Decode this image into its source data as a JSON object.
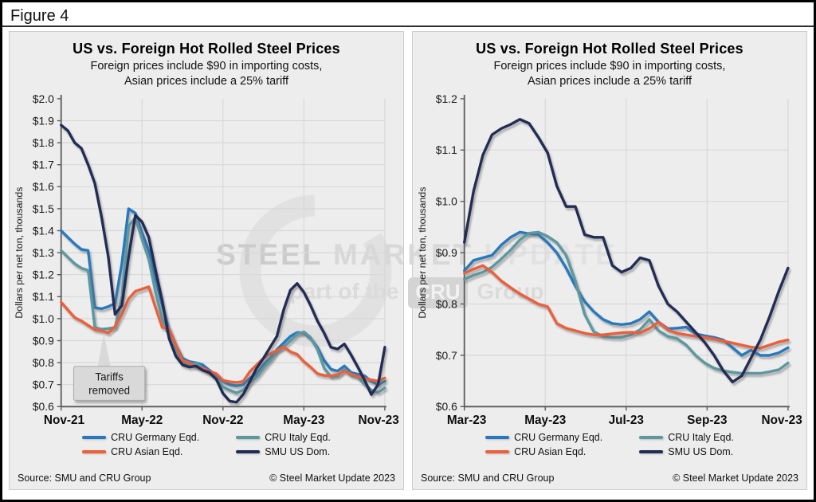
{
  "figure_label": "Figure 4",
  "source": "Source: SMU and CRU Group",
  "copyright": "© Steel Market Update 2023",
  "watermark": {
    "word1": "STEEL",
    "word2": "MARKET",
    "word3": "UPDATE",
    "line2_pre": "part of the",
    "line2_logo": "CRU",
    "line2_post": "Group"
  },
  "colors": {
    "germany": "#2878bd",
    "italy": "#5b98a0",
    "asian": "#ec5f3a",
    "us": "#222c54",
    "grid": "#d8d8d8",
    "axis": "#595959",
    "panel_bg": "#ededed",
    "callout_bg": "#d9d9d9"
  },
  "legend": {
    "items": [
      {
        "label": "CRU Germany Eqd.",
        "color": "#2878bd"
      },
      {
        "label": "CRU Italy Eqd.",
        "color": "#5b98a0"
      },
      {
        "label": "CRU Asian Eqd.",
        "color": "#ec5f3a"
      },
      {
        "label": "SMU US Dom.",
        "color": "#222c54"
      }
    ]
  },
  "chart_data": [
    {
      "type": "line",
      "title": "US vs. Foreign Hot Rolled Steel Prices",
      "subtitle": [
        "Foreign prices include $90 in importing costs,",
        "Asian prices include a 25% tariff"
      ],
      "ylabel": "Dollars per net ton, thousands",
      "ylim": [
        0.6,
        2.0
      ],
      "yticks": [
        "$2.0",
        "$1.9",
        "$1.8",
        "$1.7",
        "$1.6",
        "$1.5",
        "$1.4",
        "$1.3",
        "$1.2",
        "$1.1",
        "$1.0",
        "$0.9",
        "$0.8",
        "$0.7",
        "$0.6"
      ],
      "xticks": [
        "Nov-21",
        "May-22",
        "Nov-22",
        "May-23",
        "Nov-23"
      ],
      "x_start": "Nov-21",
      "x_end": "Nov-23",
      "x_step": "half-month",
      "grid": true,
      "legend_position": "bottom",
      "annotation": {
        "line1": "Tariffs",
        "line2": "removed",
        "points_to": {
          "series": "CRU Asian Eqd.",
          "x": "Jan-22",
          "value": 0.95
        }
      },
      "series": [
        {
          "name": "CRU Germany Eqd.",
          "color": "#2878bd",
          "values": [
            1.4,
            1.37,
            1.34,
            1.315,
            1.31,
            1.05,
            1.045,
            1.055,
            1.07,
            1.25,
            1.5,
            1.48,
            1.39,
            1.31,
            1.18,
            1.06,
            0.95,
            0.88,
            0.82,
            0.805,
            0.8,
            0.79,
            0.765,
            0.745,
            0.715,
            0.7,
            0.695,
            0.7,
            0.73,
            0.75,
            0.79,
            0.82,
            0.86,
            0.89,
            0.92,
            0.937,
            0.935,
            0.91,
            0.87,
            0.81,
            0.77,
            0.762,
            0.785,
            0.755,
            0.748,
            0.74,
            0.715,
            0.7,
            0.715
          ]
        },
        {
          "name": "CRU Italy Eqd.",
          "color": "#5b98a0",
          "values": [
            1.31,
            1.28,
            1.25,
            1.23,
            1.22,
            0.96,
            0.952,
            0.955,
            0.96,
            1.1,
            1.42,
            1.46,
            1.36,
            1.27,
            1.12,
            1.0,
            0.92,
            0.855,
            0.8,
            0.79,
            0.8,
            0.775,
            0.75,
            0.73,
            0.69,
            0.675,
            0.663,
            0.675,
            0.71,
            0.735,
            0.775,
            0.81,
            0.852,
            0.872,
            0.9,
            0.93,
            0.94,
            0.915,
            0.86,
            0.775,
            0.737,
            0.74,
            0.77,
            0.743,
            0.735,
            0.7,
            0.675,
            0.665,
            0.685
          ]
        },
        {
          "name": "CRU Asian Eqd.",
          "color": "#ec5f3a",
          "values": [
            1.075,
            1.04,
            1.005,
            0.99,
            0.97,
            0.95,
            0.945,
            0.935,
            0.965,
            1.02,
            1.09,
            1.125,
            1.135,
            1.145,
            1.05,
            0.96,
            0.955,
            0.88,
            0.81,
            0.8,
            0.78,
            0.775,
            0.76,
            0.75,
            0.72,
            0.713,
            0.71,
            0.715,
            0.76,
            0.79,
            0.82,
            0.84,
            0.856,
            0.872,
            0.85,
            0.838,
            0.805,
            0.78,
            0.75,
            0.742,
            0.74,
            0.746,
            0.762,
            0.748,
            0.737,
            0.728,
            0.722,
            0.716,
            0.73
          ]
        },
        {
          "name": "SMU US Dom.",
          "color": "#222c54",
          "values": [
            1.88,
            1.855,
            1.8,
            1.775,
            1.7,
            1.615,
            1.46,
            1.28,
            1.02,
            1.06,
            1.28,
            1.47,
            1.44,
            1.37,
            1.22,
            1.08,
            0.91,
            0.83,
            0.79,
            0.78,
            0.785,
            0.765,
            0.755,
            0.725,
            0.66,
            0.625,
            0.62,
            0.655,
            0.715,
            0.775,
            0.82,
            0.87,
            0.92,
            1.04,
            1.13,
            1.16,
            1.12,
            1.06,
            0.99,
            0.935,
            0.87,
            0.862,
            0.885,
            0.835,
            0.78,
            0.72,
            0.655,
            0.7,
            0.87
          ]
        }
      ]
    },
    {
      "type": "line",
      "title": "US vs. Foreign Hot Rolled Steel Prices",
      "subtitle": [
        "Foreign prices include $90 in importing costs,",
        "Asian prices include a 25% tariff"
      ],
      "ylabel": "Dollars per net ton, thousands",
      "ylim": [
        0.6,
        1.2
      ],
      "yticks": [
        "$1.2",
        "$1.1",
        "$1.0",
        "$0.9",
        "$0.8",
        "$0.7",
        "$0.6"
      ],
      "xticks": [
        "Mar-23",
        "May-23",
        "Jul-23",
        "Sep-23",
        "Nov-23"
      ],
      "x_start": "Mar-23",
      "x_end": "Nov-23",
      "x_step": "week",
      "grid": true,
      "legend_position": "bottom",
      "series": [
        {
          "name": "CRU Germany Eqd.",
          "color": "#2878bd",
          "values": [
            0.865,
            0.885,
            0.89,
            0.895,
            0.915,
            0.93,
            0.94,
            0.937,
            0.935,
            0.92,
            0.9,
            0.87,
            0.835,
            0.805,
            0.785,
            0.77,
            0.762,
            0.76,
            0.762,
            0.77,
            0.785,
            0.765,
            0.752,
            0.753,
            0.755,
            0.742,
            0.738,
            0.735,
            0.73,
            0.715,
            0.7,
            0.71,
            0.7,
            0.7,
            0.705,
            0.715
          ]
        },
        {
          "name": "CRU Italy Eqd.",
          "color": "#5b98a0",
          "values": [
            0.848,
            0.856,
            0.862,
            0.872,
            0.888,
            0.905,
            0.925,
            0.938,
            0.94,
            0.932,
            0.92,
            0.895,
            0.845,
            0.78,
            0.746,
            0.737,
            0.735,
            0.735,
            0.74,
            0.75,
            0.77,
            0.748,
            0.737,
            0.733,
            0.72,
            0.7,
            0.685,
            0.675,
            0.67,
            0.667,
            0.665,
            0.665,
            0.665,
            0.668,
            0.672,
            0.685
          ]
        },
        {
          "name": "CRU Asian Eqd.",
          "color": "#ec5f3a",
          "values": [
            0.86,
            0.868,
            0.875,
            0.862,
            0.845,
            0.832,
            0.82,
            0.81,
            0.8,
            0.795,
            0.762,
            0.753,
            0.748,
            0.743,
            0.74,
            0.74,
            0.742,
            0.744,
            0.745,
            0.744,
            0.752,
            0.765,
            0.75,
            0.743,
            0.74,
            0.737,
            0.735,
            0.732,
            0.728,
            0.724,
            0.72,
            0.716,
            0.714,
            0.72,
            0.726,
            0.73
          ]
        },
        {
          "name": "SMU US Dom.",
          "color": "#222c54",
          "values": [
            0.92,
            1.02,
            1.09,
            1.13,
            1.142,
            1.15,
            1.16,
            1.152,
            1.125,
            1.095,
            1.03,
            0.99,
            0.99,
            0.935,
            0.93,
            0.93,
            0.875,
            0.862,
            0.87,
            0.89,
            0.885,
            0.835,
            0.8,
            0.785,
            0.765,
            0.745,
            0.725,
            0.7,
            0.67,
            0.648,
            0.66,
            0.695,
            0.73,
            0.775,
            0.825,
            0.87
          ]
        }
      ]
    }
  ]
}
